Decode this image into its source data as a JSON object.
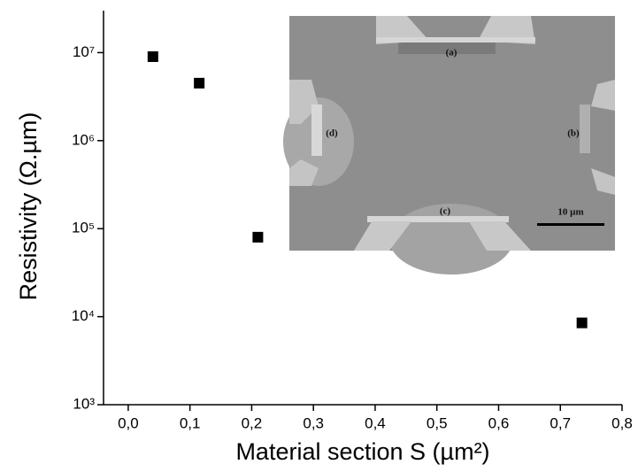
{
  "chart_data": {
    "type": "scatter",
    "x_label": "Material section S (µm²)",
    "y_label": "Resistivity (Ω.µm)",
    "log_y": true,
    "color": "#000000",
    "x": [
      0.04,
      0.115,
      0.21,
      0.735
    ],
    "values": [
      9000000,
      4500000,
      80000,
      8500
    ],
    "xlim": [
      -0.04,
      0.8
    ],
    "ylim": [
      1000,
      30000000
    ],
    "xticks": [
      {
        "value": 0.0,
        "label": "0,0"
      },
      {
        "value": 0.1,
        "label": "0,1"
      },
      {
        "value": 0.2,
        "label": "0,2"
      },
      {
        "value": 0.3,
        "label": "0,3"
      },
      {
        "value": 0.4,
        "label": "0,4"
      },
      {
        "value": 0.5,
        "label": "0,5"
      },
      {
        "value": 0.6,
        "label": "0,6"
      },
      {
        "value": 0.7,
        "label": "0,7"
      },
      {
        "value": 0.8,
        "label": "0,8"
      }
    ],
    "yticks": [
      {
        "value": 1000,
        "label": "10³"
      },
      {
        "value": 10000,
        "label": "10⁴"
      },
      {
        "value": 100000,
        "label": "10⁵"
      },
      {
        "value": 1000000,
        "label": "10⁶"
      },
      {
        "value": 10000000,
        "label": "10⁷"
      }
    ],
    "inset_labels": [
      "(a)",
      "(b)",
      "(c)",
      "(d)"
    ],
    "scale_bar": "10 µm"
  }
}
